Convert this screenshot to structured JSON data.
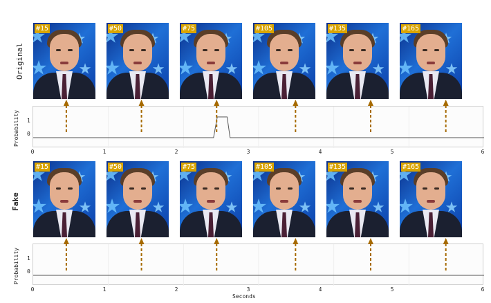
{
  "rows": [
    {
      "label": "Original",
      "bold": false,
      "frames": [
        "#15",
        "#50",
        "#75",
        "#105",
        "#135",
        "#165"
      ],
      "plot": {
        "ylabel": "Probability",
        "yticks": [
          "1",
          "0"
        ],
        "xticks": [
          "0",
          "1",
          "2",
          "3",
          "4",
          "5",
          "6"
        ],
        "line_color": "#555555"
      }
    },
    {
      "label": "Fake",
      "bold": true,
      "frames": [
        "#15",
        "#50",
        "#75",
        "#105",
        "#135",
        "#165"
      ],
      "plot": {
        "ylabel": "Probability",
        "yticks": [
          "1",
          "0"
        ],
        "xticks": [
          "0",
          "1",
          "2",
          "3",
          "4",
          "5",
          "6"
        ],
        "line_color": "#555555"
      }
    }
  ],
  "xlabel": "Seconds",
  "arrow_color": "#a66a00",
  "badge_color": "#d9a400",
  "chart_data": [
    {
      "type": "line",
      "ylabel": "Probability",
      "xlabel": "",
      "xlim": [
        0,
        6
      ],
      "ylim": [
        -0.5,
        1.5
      ],
      "x": [
        0,
        2.4,
        2.45,
        2.58,
        2.62,
        6
      ],
      "values": [
        0,
        0,
        1,
        1,
        0,
        0
      ],
      "markers_x": [
        0.45,
        1.45,
        2.45,
        3.5,
        4.5,
        5.5
      ]
    },
    {
      "type": "line",
      "ylabel": "Probability",
      "xlabel": "Seconds",
      "xlim": [
        0,
        6
      ],
      "ylim": [
        -0.5,
        1.5
      ],
      "x": [
        0,
        6
      ],
      "values": [
        0,
        0
      ],
      "markers_x": [
        0.45,
        1.45,
        2.45,
        3.5,
        4.5,
        5.5
      ]
    }
  ]
}
